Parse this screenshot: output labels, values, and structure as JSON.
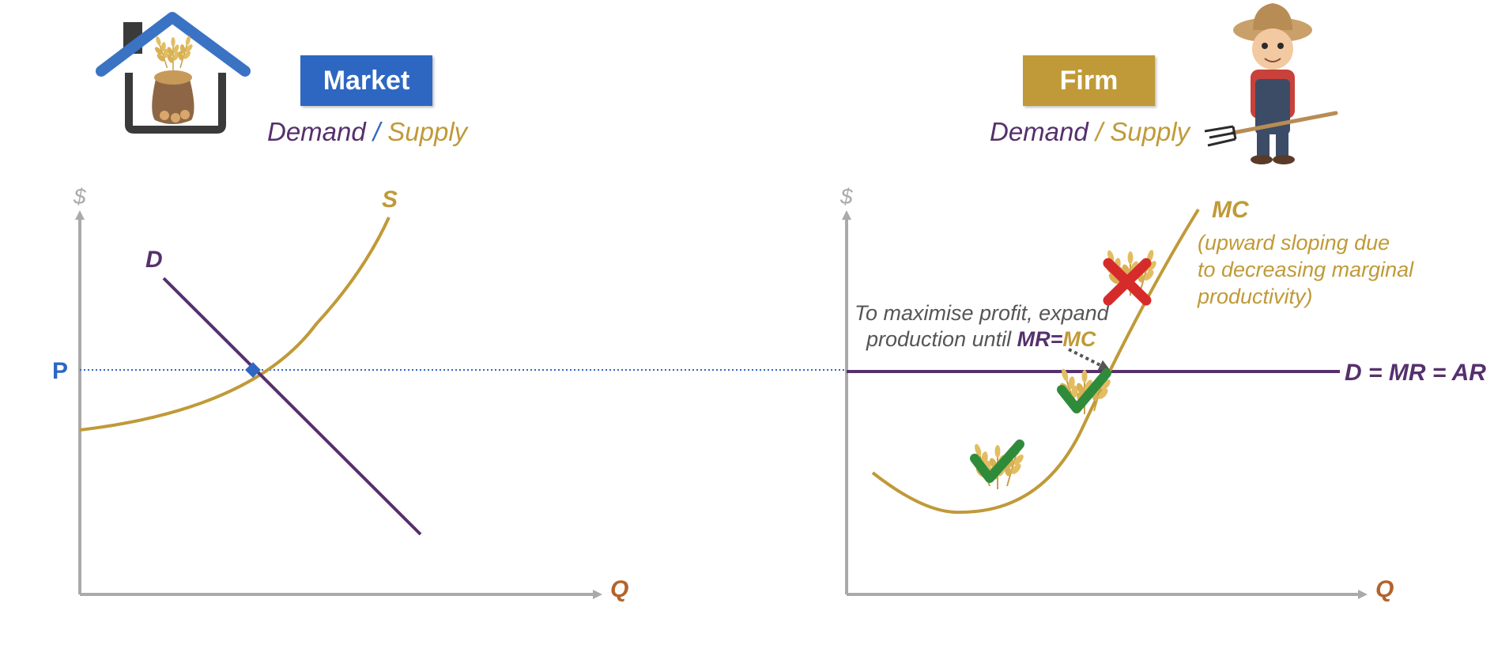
{
  "market": {
    "badge": "Market",
    "subtitle": {
      "demand": "Demand",
      "separator": "/",
      "supply": "Supply"
    },
    "axis": {
      "y": "$",
      "x": "Q"
    },
    "curves": {
      "demand": "D",
      "supply": "S"
    },
    "price_label": "P"
  },
  "firm": {
    "badge": "Firm",
    "subtitle": {
      "demand": "Demand",
      "separator": "/",
      "supply": "Supply"
    },
    "axis": {
      "y": "$",
      "x": "Q"
    },
    "mc_label": "MC",
    "mc_note": [
      "(upward sloping due",
      "to decreasing marginal",
      "productivity)"
    ],
    "demand_line_label": "D = MR = AR",
    "annotation": {
      "line1": "To maximise profit, expand",
      "line2_prefix": "production until ",
      "line2_mr": "MR",
      "line2_eq": "=",
      "line2_mc": "MC"
    }
  },
  "colors": {
    "purple": "#55306d",
    "gold": "#c09a38",
    "blue": "#2e67c2",
    "orange": "#b4632a",
    "axis": "#aaaaaa",
    "check": "#2e8b3a",
    "cross": "#d62b2b"
  },
  "icons": [
    "house-icon",
    "wheat-sack-icon",
    "farmer-icon",
    "pitchfork-icon",
    "wheat-icon",
    "check-icon",
    "cross-icon"
  ]
}
